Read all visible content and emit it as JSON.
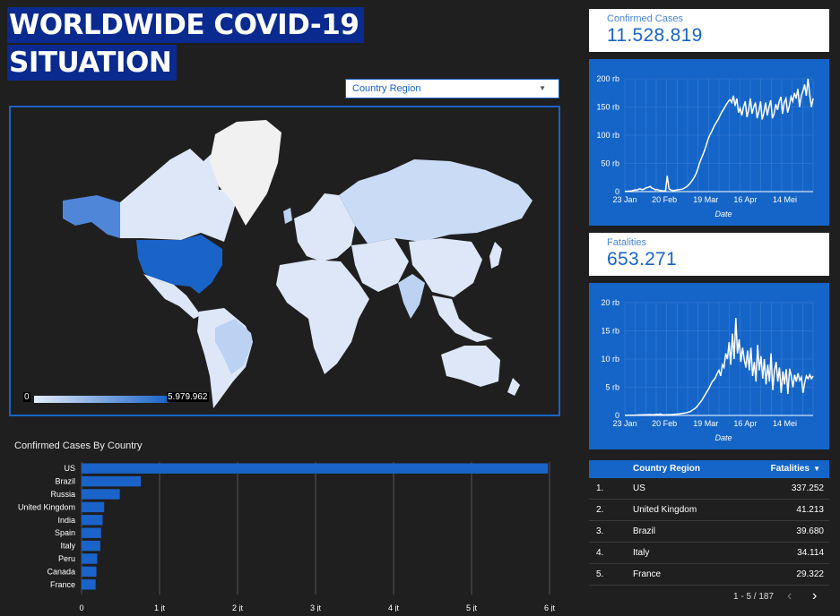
{
  "header": {
    "title_line1": "WORLDWIDE COVID-19",
    "title_line2": "SITUATION"
  },
  "filter": {
    "label": "Country Region"
  },
  "map": {
    "legend_min": "0",
    "legend_max": "5.979.962",
    "colors": {
      "us": "#1a63c9",
      "high": "#6fa0e4",
      "mid": "#bcd2f2",
      "low": "#dde7f7",
      "none": "#f1f1f1"
    }
  },
  "confirmed_card": {
    "label": "Confirmed Cases",
    "value": "11.528.819"
  },
  "fatalities_card": {
    "label": "Fatalities",
    "value": "653.271"
  },
  "chart_data": [
    {
      "type": "line",
      "name": "confirmed",
      "xlabel": "Date",
      "x_ticks": [
        "23 Jan",
        "20 Feb",
        "19 Mar",
        "16 Apr",
        "14 Mei"
      ],
      "y_ticks": [
        "0",
        "50 rb",
        "100 rb",
        "150 rb",
        "200 rb"
      ],
      "ylim": [
        0,
        200000
      ],
      "values": [
        500,
        600,
        700,
        900,
        1200,
        2000,
        3000,
        2500,
        4000,
        5000,
        3500,
        4000,
        6000,
        7000,
        8000,
        9000,
        6000,
        5000,
        3000,
        4000,
        2500,
        2000,
        1500,
        1000,
        2000,
        28000,
        5000,
        3000,
        2000,
        2000,
        2500,
        3000,
        3500,
        4000,
        4500,
        6000,
        8000,
        10000,
        13000,
        17000,
        21000,
        26000,
        32000,
        40000,
        50000,
        58000,
        65000,
        73000,
        82000,
        92000,
        100000,
        105000,
        112000,
        118000,
        123000,
        128000,
        134000,
        140000,
        145000,
        150000,
        155000,
        160000,
        163000,
        158000,
        170000,
        152000,
        165000,
        140000,
        148000,
        135000,
        150000,
        160000,
        132000,
        145000,
        165000,
        138000,
        150000,
        158000,
        130000,
        142000,
        160000,
        128000,
        140000,
        158000,
        135000,
        150000,
        162000,
        130000,
        138000,
        155000,
        145000,
        160000,
        168000,
        138000,
        158000,
        165000,
        140000,
        152000,
        168000,
        160000,
        175000,
        165000,
        182000,
        150000,
        170000,
        178000,
        190000,
        170000,
        200000,
        172000,
        150000,
        165000
      ]
    },
    {
      "type": "line",
      "name": "fatalities",
      "xlabel": "Date",
      "x_ticks": [
        "23 Jan",
        "20 Feb",
        "19 Mar",
        "16 Apr",
        "14 Mei"
      ],
      "y_ticks": [
        "0",
        "5 rb",
        "10 rb",
        "15 rb",
        "20 rb"
      ],
      "ylim": [
        0,
        20000
      ],
      "values": [
        20,
        20,
        30,
        30,
        40,
        50,
        50,
        60,
        80,
        90,
        100,
        110,
        120,
        130,
        150,
        160,
        120,
        140,
        150,
        200,
        150,
        250,
        150,
        100,
        120,
        130,
        150,
        140,
        160,
        200,
        220,
        240,
        260,
        300,
        350,
        400,
        450,
        500,
        600,
        700,
        900,
        1100,
        1300,
        1600,
        2000,
        2400,
        2800,
        3300,
        3800,
        4300,
        4800,
        5400,
        6000,
        6300,
        6800,
        7500,
        8000,
        7000,
        9000,
        8500,
        11000,
        10000,
        13000,
        9000,
        14500,
        10000,
        17300,
        11000,
        13500,
        9500,
        12000,
        10000,
        8500,
        11500,
        8000,
        12000,
        7000,
        9500,
        6000,
        12500,
        8000,
        10500,
        6500,
        10000,
        5500,
        9000,
        6000,
        11000,
        4500,
        8000,
        9500,
        6000,
        8500,
        4000,
        7800,
        5500,
        8200,
        3800,
        8300,
        7000,
        5000,
        7200,
        6000,
        7500,
        6200,
        6800,
        4000,
        5800,
        7000,
        6500,
        7200,
        6500,
        7000
      ]
    },
    {
      "type": "bar",
      "name": "confirmed_by_country",
      "title": "Confirmed Cases By Country",
      "categories": [
        "US",
        "Brazil",
        "Russia",
        "United Kingdom",
        "India",
        "Spain",
        "Italy",
        "Peru",
        "Canada",
        "France"
      ],
      "values": [
        5979962,
        760000,
        490000,
        290000,
        270000,
        250000,
        240000,
        200000,
        190000,
        180000
      ],
      "x_ticks": [
        "0",
        "1 jt",
        "2 jt",
        "3 jt",
        "4 jt",
        "5 jt",
        "6 jt"
      ],
      "xlim": [
        0,
        6000000
      ]
    }
  ],
  "table": {
    "col1": "Country Region",
    "col2": "Fatalities",
    "rows": [
      {
        "rank": "1.",
        "name": "US",
        "value": "337.252"
      },
      {
        "rank": "2.",
        "name": "United Kingdom",
        "value": "41.213"
      },
      {
        "rank": "3.",
        "name": "Brazil",
        "value": "39.680"
      },
      {
        "rank": "4.",
        "name": "Italy",
        "value": "34.114"
      },
      {
        "rank": "5.",
        "name": "France",
        "value": "29.322"
      }
    ]
  },
  "pagination": {
    "text": "1 - 5 / 187"
  }
}
